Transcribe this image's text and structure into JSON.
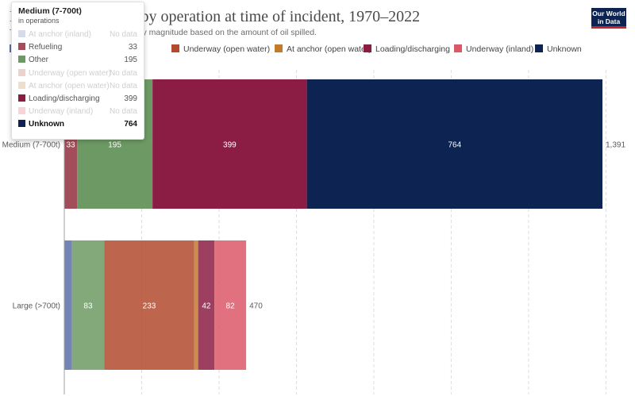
{
  "header": {
    "title": "Number of oil spills by operation at time of incident, 1970–2022",
    "subtitle": "The size of oil spills is categorized by magnitude based on the amount of oil spilled.",
    "logo_line1": "Our World",
    "logo_line2": "in Data"
  },
  "legend": [
    {
      "name": "At anchor (inland)",
      "color": "#5b6fa8"
    },
    {
      "name": "Refueling",
      "color": "#a14e5a"
    },
    {
      "name": "Other",
      "color": "#6d9a64"
    },
    {
      "name": "Underway (open water)",
      "color": "#b34a2e"
    },
    {
      "name": "At anchor (open water)",
      "color": "#c27b2c"
    },
    {
      "name": "Loading/discharging",
      "color": "#8b1d45"
    },
    {
      "name": "Underway (inland)",
      "color": "#dc5867"
    },
    {
      "name": "Unknown",
      "color": "#0d2453"
    }
  ],
  "tooltip": {
    "title": "Medium (7-700t)",
    "unit": "in operations",
    "rows": [
      {
        "name": "At anchor (inland)",
        "value": "No data",
        "color": "#5b6fa8",
        "state": "faded"
      },
      {
        "name": "Refueling",
        "value": "33",
        "color": "#a14e5a",
        "state": "normal"
      },
      {
        "name": "Other",
        "value": "195",
        "color": "#6d9a64",
        "state": "normal"
      },
      {
        "name": "Underway (open water)",
        "value": "No data",
        "color": "#b34a2e",
        "state": "faded"
      },
      {
        "name": "At anchor (open water)",
        "value": "No data",
        "color": "#c27b2c",
        "state": "faded"
      },
      {
        "name": "Loading/discharging",
        "value": "399",
        "color": "#8b1d45",
        "state": "normal"
      },
      {
        "name": "Underway (inland)",
        "value": "No data",
        "color": "#dc5867",
        "state": "faded"
      },
      {
        "name": "Unknown",
        "value": "764",
        "color": "#0d2453",
        "state": "active"
      }
    ]
  },
  "chart_data": {
    "type": "bar",
    "orientation": "horizontal",
    "stacked": true,
    "categories": [
      "Medium (7-700t)",
      "Large (>700t)"
    ],
    "series": [
      {
        "name": "At anchor (inland)",
        "values": [
          0,
          20
        ],
        "color": "#5b6fa8"
      },
      {
        "name": "Refueling",
        "values": [
          33,
          0
        ],
        "color": "#a14e5a"
      },
      {
        "name": "Other",
        "values": [
          195,
          83
        ],
        "color": "#6d9a64"
      },
      {
        "name": "Underway (open water)",
        "values": [
          0,
          233
        ],
        "color": "#b34a2e"
      },
      {
        "name": "At anchor (open water)",
        "values": [
          0,
          10
        ],
        "color": "#c27b2c"
      },
      {
        "name": "Loading/discharging",
        "values": [
          399,
          42
        ],
        "color": "#8b1d45"
      },
      {
        "name": "Underway (inland)",
        "values": [
          0,
          82
        ],
        "color": "#dc5867"
      },
      {
        "name": "Unknown",
        "values": [
          764,
          0
        ],
        "color": "#0d2453"
      }
    ],
    "bar_labels": [
      [
        "33",
        "195",
        "399",
        "764"
      ],
      [
        "83",
        "233",
        "42",
        "82"
      ]
    ],
    "totals": [
      "1,391",
      "470"
    ],
    "xlim": [
      0,
      1400
    ],
    "grid": true,
    "highlighted_category": "Medium (7-700t)",
    "legend_position": "top"
  }
}
